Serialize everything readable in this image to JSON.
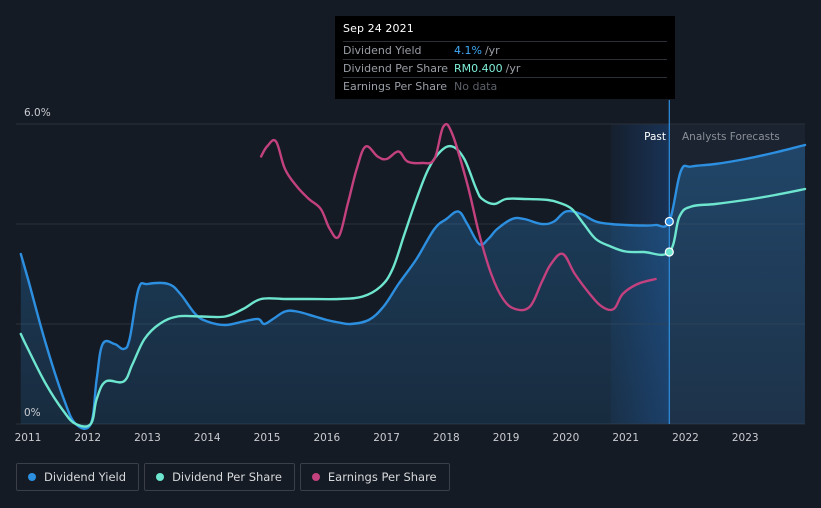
{
  "tooltip": {
    "date": "Sep 24 2021",
    "rows": [
      {
        "label": "Dividend Yield",
        "value": "4.1%",
        "unit": "/yr"
      },
      {
        "label": "Dividend Per Share",
        "value": "RM0.400",
        "unit": "/yr"
      },
      {
        "label": "Earnings Per Share",
        "value": "No data",
        "unit": ""
      }
    ]
  },
  "regions": {
    "past": "Past",
    "forecast": "Analysts Forecasts"
  },
  "legend": [
    {
      "label": "Dividend Yield",
      "color": "#2d8fe0"
    },
    {
      "label": "Dividend Per Share",
      "color": "#6ee6cf"
    },
    {
      "label": "Earnings Per Share",
      "color": "#c2417e"
    }
  ],
  "chart_data": {
    "type": "line",
    "title": "",
    "xlabel": "",
    "ylabel": "",
    "xlim": [
      2010.8,
      2024.0
    ],
    "ylim": [
      0,
      6.0
    ],
    "y_ticks": [
      {
        "value": 0,
        "label": "0%"
      },
      {
        "value": 6.0,
        "label": "6.0%"
      }
    ],
    "x_ticks": [
      "2011",
      "2012",
      "2013",
      "2014",
      "2015",
      "2016",
      "2017",
      "2018",
      "2019",
      "2020",
      "2021",
      "2022",
      "2023"
    ],
    "highlight_x": 2021.73,
    "past_band_start": 2020.75,
    "series": [
      {
        "name": "Dividend Yield",
        "color": "#2d8fe0",
        "filled": true,
        "points": [
          [
            2010.88,
            3.4
          ],
          [
            2011.0,
            2.9
          ],
          [
            2011.3,
            1.6
          ],
          [
            2011.6,
            0.5
          ],
          [
            2011.8,
            0.0
          ],
          [
            2012.05,
            0.0
          ],
          [
            2012.15,
            0.9
          ],
          [
            2012.25,
            1.6
          ],
          [
            2012.45,
            1.6
          ],
          [
            2012.6,
            1.5
          ],
          [
            2012.7,
            1.7
          ],
          [
            2012.85,
            2.7
          ],
          [
            2013.0,
            2.8
          ],
          [
            2013.35,
            2.8
          ],
          [
            2013.55,
            2.6
          ],
          [
            2013.8,
            2.2
          ],
          [
            2014.0,
            2.05
          ],
          [
            2014.3,
            1.98
          ],
          [
            2014.6,
            2.05
          ],
          [
            2014.85,
            2.1
          ],
          [
            2014.95,
            2.0
          ],
          [
            2015.1,
            2.1
          ],
          [
            2015.3,
            2.25
          ],
          [
            2015.5,
            2.25
          ],
          [
            2015.8,
            2.15
          ],
          [
            2016.0,
            2.08
          ],
          [
            2016.2,
            2.03
          ],
          [
            2016.4,
            2.0
          ],
          [
            2016.7,
            2.08
          ],
          [
            2016.95,
            2.35
          ],
          [
            2017.2,
            2.8
          ],
          [
            2017.5,
            3.3
          ],
          [
            2017.8,
            3.9
          ],
          [
            2018.0,
            4.1
          ],
          [
            2018.2,
            4.25
          ],
          [
            2018.35,
            4.0
          ],
          [
            2018.55,
            3.6
          ],
          [
            2018.7,
            3.7
          ],
          [
            2018.85,
            3.9
          ],
          [
            2019.1,
            4.1
          ],
          [
            2019.3,
            4.1
          ],
          [
            2019.6,
            4.0
          ],
          [
            2019.8,
            4.05
          ],
          [
            2020.0,
            4.25
          ],
          [
            2020.25,
            4.2
          ],
          [
            2020.5,
            4.05
          ],
          [
            2020.75,
            4.0
          ],
          [
            2021.0,
            3.98
          ],
          [
            2021.3,
            3.97
          ],
          [
            2021.5,
            3.98
          ],
          [
            2021.73,
            4.05
          ],
          [
            2021.92,
            5.05
          ],
          [
            2022.1,
            5.15
          ],
          [
            2022.5,
            5.2
          ],
          [
            2023.0,
            5.3
          ],
          [
            2023.5,
            5.43
          ],
          [
            2024.0,
            5.58
          ]
        ]
      },
      {
        "name": "Dividend Per Share",
        "color": "#6ee6cf",
        "filled": false,
        "points": [
          [
            2010.88,
            1.8
          ],
          [
            2011.0,
            1.5
          ],
          [
            2011.3,
            0.8
          ],
          [
            2011.6,
            0.25
          ],
          [
            2011.8,
            0.0
          ],
          [
            2012.05,
            0.0
          ],
          [
            2012.15,
            0.5
          ],
          [
            2012.3,
            0.85
          ],
          [
            2012.6,
            0.85
          ],
          [
            2012.75,
            1.2
          ],
          [
            2012.95,
            1.7
          ],
          [
            2013.2,
            2.0
          ],
          [
            2013.5,
            2.15
          ],
          [
            2013.9,
            2.15
          ],
          [
            2014.3,
            2.15
          ],
          [
            2014.6,
            2.3
          ],
          [
            2014.9,
            2.5
          ],
          [
            2015.3,
            2.5
          ],
          [
            2015.7,
            2.5
          ],
          [
            2016.2,
            2.5
          ],
          [
            2016.6,
            2.55
          ],
          [
            2016.9,
            2.75
          ],
          [
            2017.1,
            3.1
          ],
          [
            2017.3,
            3.8
          ],
          [
            2017.5,
            4.5
          ],
          [
            2017.7,
            5.1
          ],
          [
            2017.9,
            5.45
          ],
          [
            2018.1,
            5.55
          ],
          [
            2018.3,
            5.3
          ],
          [
            2018.5,
            4.7
          ],
          [
            2018.6,
            4.5
          ],
          [
            2018.8,
            4.4
          ],
          [
            2019.0,
            4.5
          ],
          [
            2019.3,
            4.5
          ],
          [
            2019.7,
            4.48
          ],
          [
            2019.9,
            4.42
          ],
          [
            2020.1,
            4.3
          ],
          [
            2020.3,
            4.0
          ],
          [
            2020.5,
            3.7
          ],
          [
            2020.75,
            3.55
          ],
          [
            2021.0,
            3.45
          ],
          [
            2021.3,
            3.44
          ],
          [
            2021.73,
            3.44
          ],
          [
            2021.9,
            4.15
          ],
          [
            2022.1,
            4.35
          ],
          [
            2022.5,
            4.4
          ],
          [
            2023.0,
            4.48
          ],
          [
            2023.5,
            4.58
          ],
          [
            2024.0,
            4.7
          ]
        ]
      },
      {
        "name": "Earnings Per Share",
        "color": "#c2417e",
        "filled": false,
        "points": [
          [
            2014.9,
            5.35
          ],
          [
            2015.0,
            5.55
          ],
          [
            2015.15,
            5.65
          ],
          [
            2015.3,
            5.1
          ],
          [
            2015.5,
            4.75
          ],
          [
            2015.7,
            4.5
          ],
          [
            2015.9,
            4.3
          ],
          [
            2016.05,
            3.9
          ],
          [
            2016.2,
            3.75
          ],
          [
            2016.35,
            4.4
          ],
          [
            2016.5,
            5.1
          ],
          [
            2016.65,
            5.55
          ],
          [
            2016.85,
            5.35
          ],
          [
            2017.0,
            5.3
          ],
          [
            2017.2,
            5.45
          ],
          [
            2017.35,
            5.25
          ],
          [
            2017.6,
            5.22
          ],
          [
            2017.8,
            5.3
          ],
          [
            2017.95,
            5.95
          ],
          [
            2018.1,
            5.8
          ],
          [
            2018.35,
            4.8
          ],
          [
            2018.55,
            3.8
          ],
          [
            2018.75,
            3.0
          ],
          [
            2018.95,
            2.5
          ],
          [
            2019.15,
            2.3
          ],
          [
            2019.4,
            2.35
          ],
          [
            2019.6,
            2.85
          ],
          [
            2019.75,
            3.2
          ],
          [
            2019.95,
            3.4
          ],
          [
            2020.15,
            3.0
          ],
          [
            2020.4,
            2.6
          ],
          [
            2020.6,
            2.35
          ],
          [
            2020.8,
            2.3
          ],
          [
            2020.95,
            2.6
          ],
          [
            2021.2,
            2.8
          ],
          [
            2021.5,
            2.9
          ]
        ]
      }
    ]
  }
}
